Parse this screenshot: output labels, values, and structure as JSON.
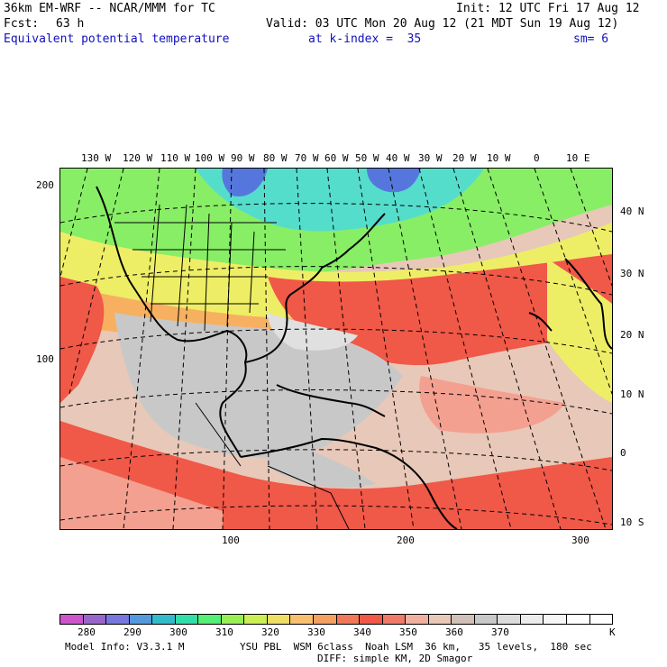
{
  "header": {
    "model_title": "36km EM-WRF -- NCAR/MMM for TC",
    "init": "Init: 12 UTC Fri 17 Aug 12",
    "fcst_label": "Fcst:",
    "fcst_value": "63 h",
    "valid": "Valid: 03 UTC Mon 20 Aug 12 (21 MDT Sun 19 Aug 12)",
    "field_name": "Equivalent potential temperature",
    "level": "at k-index =  35",
    "smoothing": "sm= 6"
  },
  "map": {
    "lon_labels": [
      "130 W",
      "120 W",
      "110 W",
      "100 W",
      "90 W",
      "80 W",
      "70 W",
      "60 W",
      "50 W",
      "40 W",
      "30 W",
      "20 W",
      "10 W",
      "0",
      "10 E"
    ],
    "lat_labels": [
      "40 N",
      "30 N",
      "20 N",
      "10 N",
      "0",
      "10 S"
    ],
    "grid_y_labels": [
      "200",
      "100"
    ],
    "grid_x_labels": [
      "100",
      "200",
      "300"
    ]
  },
  "colorbar": {
    "colors": [
      "#cc55cc",
      "#9966cc",
      "#7777dd",
      "#5599dd",
      "#33bbcc",
      "#33ddaa",
      "#55ee77",
      "#99ee55",
      "#ccee55",
      "#eedd66",
      "#f7c070",
      "#f4a060",
      "#f07858",
      "#f05848",
      "#f07a6a",
      "#f0b0a0",
      "#e8c8b8",
      "#d0c0b8",
      "#c8c8c8",
      "#dcdcdc",
      "#ececec",
      "#f6f6f6",
      "#ffffff",
      "#ffffff"
    ],
    "labels": [
      "280",
      "290",
      "300",
      "310",
      "320",
      "330",
      "340",
      "350",
      "360",
      "370"
    ],
    "unit": "K"
  },
  "footer": {
    "model_info": "Model Info: V3.3.1 M",
    "physics": "YSU PBL  WSM 6class  Noah LSM  36 km,   35 levels,  180 sec",
    "diffusion": "DIFF: simple KM, 2D Smagor"
  },
  "field_colors": {
    "cold": "#5577dd",
    "cyan": "#55ddcc",
    "green": "#88ee66",
    "yellow": "#eeee66",
    "orange": "#f7b060",
    "red": "#f05848",
    "salmon": "#f4a090",
    "tan": "#e8c8b8",
    "gray": "#c8c8c8",
    "lightgray": "#e0e0e0"
  }
}
